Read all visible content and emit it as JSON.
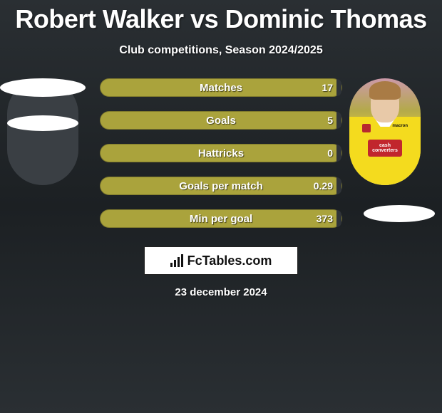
{
  "title": "Robert Walker vs Dominic Thomas",
  "subtitle": "Club competitions, Season 2024/2025",
  "date": "23 december 2024",
  "brand": "FcTables.com",
  "colors": {
    "bar_fill": "#aaa33c",
    "bar_empty": "#2f3338",
    "background_top": "#2a2f33",
    "background_mid": "#1c2023",
    "text": "#ffffff",
    "brand_box_bg": "#ffffff",
    "brand_text": "#111111"
  },
  "player_right": {
    "sponsor_text": "cash converters",
    "kit_maker": "macron"
  },
  "stats": [
    {
      "label": "Matches",
      "right_value": "17",
      "right_fill_pct": 2
    },
    {
      "label": "Goals",
      "right_value": "5",
      "right_fill_pct": 2
    },
    {
      "label": "Hattricks",
      "right_value": "0",
      "right_fill_pct": 2
    },
    {
      "label": "Goals per match",
      "right_value": "0.29",
      "right_fill_pct": 2
    },
    {
      "label": "Min per goal",
      "right_value": "373",
      "right_fill_pct": 2
    }
  ]
}
